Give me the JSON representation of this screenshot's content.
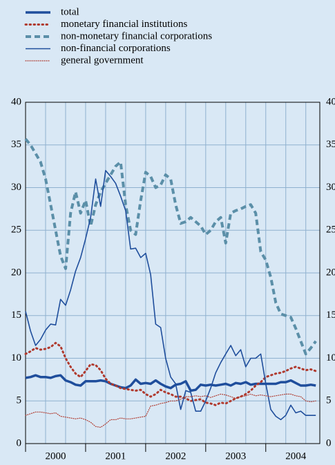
{
  "chart_data": {
    "type": "line",
    "x": [
      2000,
      2000.083,
      2000.167,
      2000.25,
      2000.333,
      2000.417,
      2000.5,
      2000.583,
      2000.667,
      2000.75,
      2000.833,
      2000.917,
      2001,
      2001.083,
      2001.167,
      2001.25,
      2001.333,
      2001.417,
      2001.5,
      2001.583,
      2001.667,
      2001.75,
      2001.833,
      2001.917,
      2002,
      2002.083,
      2002.167,
      2002.25,
      2002.333,
      2002.417,
      2002.5,
      2002.583,
      2002.667,
      2002.75,
      2002.833,
      2002.917,
      2003,
      2003.083,
      2003.167,
      2003.25,
      2003.333,
      2003.417,
      2003.5,
      2003.583,
      2003.667,
      2003.75,
      2003.833,
      2003.917,
      2004,
      2004.083,
      2004.167,
      2004.25,
      2004.333,
      2004.417,
      2004.5,
      2004.583,
      2004.667,
      2004.75,
      2004.833
    ],
    "xlim": [
      2000,
      2004.9
    ],
    "xticks": [
      {
        "value": 2000,
        "label": "2000"
      },
      {
        "value": 2001,
        "label": "2001"
      },
      {
        "value": 2002,
        "label": "2002"
      },
      {
        "value": 2003,
        "label": "2003"
      },
      {
        "value": 2004,
        "label": "2004"
      }
    ],
    "ylim": [
      0,
      40
    ],
    "yticks": [
      0,
      5,
      10,
      15,
      20,
      25,
      30,
      35,
      40
    ],
    "y2lim": [
      0,
      40
    ],
    "y2ticks": [
      0,
      5,
      10,
      15,
      20,
      25,
      30,
      35,
      40
    ],
    "grid": true,
    "series": [
      {
        "name": "total",
        "color": "#1f4e9c",
        "style": "thick",
        "values": [
          7.7,
          7.8,
          8.0,
          7.8,
          7.8,
          7.7,
          7.9,
          8.0,
          7.4,
          7.2,
          6.9,
          6.8,
          7.3,
          7.3,
          7.3,
          7.4,
          7.3,
          7.0,
          6.8,
          6.6,
          6.5,
          6.8,
          7.5,
          7.0,
          7.1,
          7.0,
          7.4,
          7.0,
          6.7,
          6.5,
          6.9,
          7.0,
          7.3,
          6.2,
          6.3,
          6.9,
          6.8,
          6.9,
          6.8,
          6.9,
          7.0,
          6.8,
          7.1,
          7.0,
          7.2,
          6.9,
          7.0,
          7.0,
          7.0,
          7.0,
          7.0,
          7.2,
          7.2,
          7.4,
          7.1,
          6.8,
          6.8,
          6.9,
          6.8
        ]
      },
      {
        "name": "monetary financial institutions",
        "color": "#b03a2e",
        "style": "dotted",
        "values": [
          10.5,
          10.8,
          11.2,
          11.0,
          11.1,
          11.3,
          11.8,
          11.4,
          10.0,
          9.0,
          8.2,
          7.8,
          8.5,
          9.3,
          9.2,
          8.6,
          7.6,
          7.0,
          6.8,
          6.5,
          6.4,
          6.3,
          6.2,
          6.3,
          5.8,
          5.5,
          5.8,
          6.3,
          6.0,
          5.8,
          5.5,
          5.5,
          5.3,
          5.0,
          5.1,
          5.2,
          4.8,
          4.7,
          4.5,
          4.8,
          4.7,
          5.0,
          5.3,
          5.5,
          5.8,
          6.2,
          6.8,
          7.2,
          7.8,
          8.0,
          8.2,
          8.3,
          8.5,
          8.8,
          9.0,
          8.8,
          8.6,
          8.7,
          8.5
        ]
      },
      {
        "name": "non-monetary financial corporations",
        "color": "#5b8fa8",
        "style": "dashed",
        "values": [
          35.7,
          35,
          34,
          33,
          31,
          28,
          25,
          22,
          20.5,
          27,
          29.5,
          27,
          28.5,
          25.5,
          28,
          29.5,
          30.5,
          31.5,
          32.5,
          33,
          28,
          25,
          24.5,
          28.5,
          31.8,
          31.3,
          30,
          30.3,
          31.5,
          31,
          28,
          25.8,
          26,
          26.5,
          26,
          25.5,
          24.5,
          25,
          26,
          26.5,
          23.5,
          27,
          27.3,
          27.5,
          27.8,
          28,
          27,
          22.5,
          21.5,
          19.5,
          16.5,
          15.2,
          15,
          14.8,
          13.5,
          12,
          10.5,
          11.2,
          12
        ]
      },
      {
        "name": "non-financial corporations",
        "color": "#1f4e9c",
        "style": "thin",
        "values": [
          15.5,
          13.2,
          11.5,
          12.2,
          13.3,
          14,
          13.9,
          16.9,
          16.2,
          18,
          20.2,
          21.8,
          24,
          26.5,
          31,
          27.8,
          32,
          31.3,
          30.5,
          29,
          27.3,
          22.8,
          22.9,
          21.8,
          22.3,
          19.8,
          14,
          13.6,
          10,
          7.8,
          7,
          4,
          6.2,
          6,
          3.8,
          3.8,
          5,
          6.5,
          8.3,
          9.5,
          10.5,
          11.5,
          10.3,
          11,
          9,
          10,
          10,
          10.5,
          7,
          4,
          3.2,
          2.8,
          3.3,
          4.5,
          3.6,
          3.8,
          3.3,
          3.3,
          3.3
        ]
      },
      {
        "name": "general government",
        "color": "#b03a2e",
        "style": "thin-dotted",
        "values": [
          3.3,
          3.5,
          3.7,
          3.7,
          3.6,
          3.5,
          3.6,
          3.2,
          3.1,
          3.0,
          2.9,
          3.0,
          2.8,
          2.5,
          2.0,
          1.9,
          2.3,
          2.8,
          2.8,
          3.0,
          2.9,
          2.9,
          3.0,
          3.1,
          3.2,
          4.4,
          4.5,
          4.7,
          4.8,
          5.0,
          5.0,
          5.2,
          5.5,
          5.5,
          5.6,
          5.5,
          5.6,
          5.4,
          5.6,
          5.8,
          5.7,
          5.5,
          5.3,
          5.5,
          5.6,
          5.8,
          5.6,
          5.7,
          5.6,
          5.5,
          5.6,
          5.7,
          5.8,
          5.8,
          5.6,
          5.5,
          5.0,
          4.9,
          5.0
        ]
      }
    ]
  }
}
